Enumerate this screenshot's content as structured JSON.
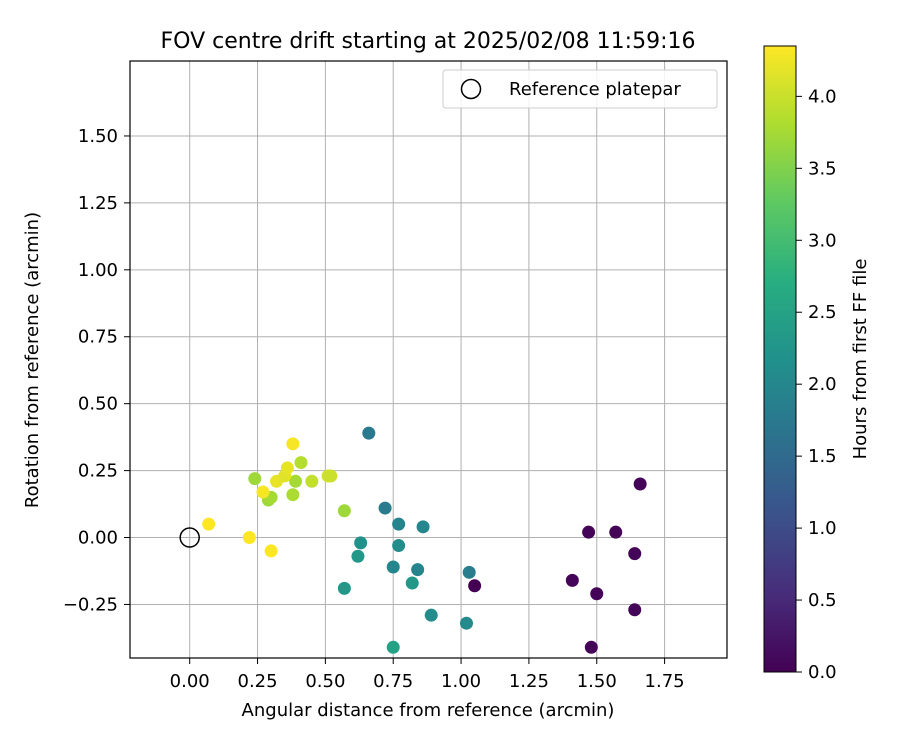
{
  "chart_data": {
    "type": "scatter",
    "title": "FOV centre drift starting at 2025/02/08 11:59:16",
    "xlabel": "Angular distance from reference (arcmin)",
    "ylabel": "Rotation from reference (arcmin)",
    "xlim": [
      -0.22,
      1.98
    ],
    "ylim": [
      -0.45,
      1.78
    ],
    "xticks": [
      0.0,
      0.25,
      0.5,
      0.75,
      1.0,
      1.25,
      1.5,
      1.75
    ],
    "xtick_labels": [
      "0.00",
      "0.25",
      "0.50",
      "0.75",
      "1.00",
      "1.25",
      "1.50",
      "1.75"
    ],
    "yticks": [
      -0.25,
      0.0,
      0.25,
      0.5,
      0.75,
      1.0,
      1.25,
      1.5
    ],
    "ytick_labels": [
      "−0.25",
      "0.00",
      "0.25",
      "0.50",
      "0.75",
      "1.00",
      "1.25",
      "1.50"
    ],
    "grid": true,
    "legend": {
      "position": "top-right",
      "entries": [
        {
          "label": "Reference platepar",
          "marker": "open-circle",
          "color": "#000000"
        }
      ]
    },
    "reference_point": {
      "x": 0.0,
      "y": 0.0
    },
    "colorbar": {
      "label": "Hours from first FF file",
      "colormap": "viridis",
      "min": 0.0,
      "max": 4.35,
      "ticks": [
        0.0,
        0.5,
        1.0,
        1.5,
        2.0,
        2.5,
        3.0,
        3.5,
        4.0
      ],
      "tick_labels": [
        "0.0",
        "0.5",
        "1.0",
        "1.5",
        "2.0",
        "2.5",
        "3.0",
        "3.5",
        "4.0"
      ]
    },
    "points": [
      {
        "x": 1.05,
        "y": -0.18,
        "hours": 0.0
      },
      {
        "x": 1.41,
        "y": -0.16,
        "hours": 0.05
      },
      {
        "x": 1.47,
        "y": 0.02,
        "hours": 0.05
      },
      {
        "x": 1.57,
        "y": 0.02,
        "hours": 0.05
      },
      {
        "x": 1.66,
        "y": 0.2,
        "hours": 0.05
      },
      {
        "x": 1.64,
        "y": -0.06,
        "hours": 0.05
      },
      {
        "x": 1.5,
        "y": -0.21,
        "hours": 0.05
      },
      {
        "x": 1.64,
        "y": -0.27,
        "hours": 0.05
      },
      {
        "x": 1.48,
        "y": -0.41,
        "hours": 0.05
      },
      {
        "x": 0.66,
        "y": 0.39,
        "hours": 1.75
      },
      {
        "x": 0.72,
        "y": 0.11,
        "hours": 1.8
      },
      {
        "x": 0.77,
        "y": 0.05,
        "hours": 1.95
      },
      {
        "x": 0.86,
        "y": 0.04,
        "hours": 2.0
      },
      {
        "x": 1.03,
        "y": -0.13,
        "hours": 1.85
      },
      {
        "x": 0.77,
        "y": -0.03,
        "hours": 2.1
      },
      {
        "x": 0.63,
        "y": -0.02,
        "hours": 2.2
      },
      {
        "x": 0.62,
        "y": -0.07,
        "hours": 2.3
      },
      {
        "x": 0.75,
        "y": -0.11,
        "hours": 2.0
      },
      {
        "x": 0.84,
        "y": -0.12,
        "hours": 1.95
      },
      {
        "x": 0.82,
        "y": -0.17,
        "hours": 2.3
      },
      {
        "x": 0.57,
        "y": -0.19,
        "hours": 2.3
      },
      {
        "x": 0.89,
        "y": -0.29,
        "hours": 2.1
      },
      {
        "x": 1.02,
        "y": -0.32,
        "hours": 2.05
      },
      {
        "x": 0.75,
        "y": -0.41,
        "hours": 2.5
      },
      {
        "x": 0.57,
        "y": 0.1,
        "hours": 3.7
      },
      {
        "x": 0.24,
        "y": 0.22,
        "hours": 3.7
      },
      {
        "x": 0.29,
        "y": 0.14,
        "hours": 3.7
      },
      {
        "x": 0.3,
        "y": 0.15,
        "hours": 3.75
      },
      {
        "x": 0.38,
        "y": 0.16,
        "hours": 3.8
      },
      {
        "x": 0.39,
        "y": 0.21,
        "hours": 3.75
      },
      {
        "x": 0.41,
        "y": 0.28,
        "hours": 3.85
      },
      {
        "x": 0.45,
        "y": 0.21,
        "hours": 3.95
      },
      {
        "x": 0.51,
        "y": 0.23,
        "hours": 4.05
      },
      {
        "x": 0.52,
        "y": 0.23,
        "hours": 4.0
      },
      {
        "x": 0.32,
        "y": 0.21,
        "hours": 4.2
      },
      {
        "x": 0.35,
        "y": 0.23,
        "hours": 4.15
      },
      {
        "x": 0.36,
        "y": 0.26,
        "hours": 4.2
      },
      {
        "x": 0.38,
        "y": 0.35,
        "hours": 4.3
      },
      {
        "x": 0.27,
        "y": 0.17,
        "hours": 4.3
      },
      {
        "x": 0.07,
        "y": 0.05,
        "hours": 4.35
      },
      {
        "x": 0.22,
        "y": 0.0,
        "hours": 4.35
      },
      {
        "x": 0.3,
        "y": -0.05,
        "hours": 4.35
      }
    ]
  }
}
